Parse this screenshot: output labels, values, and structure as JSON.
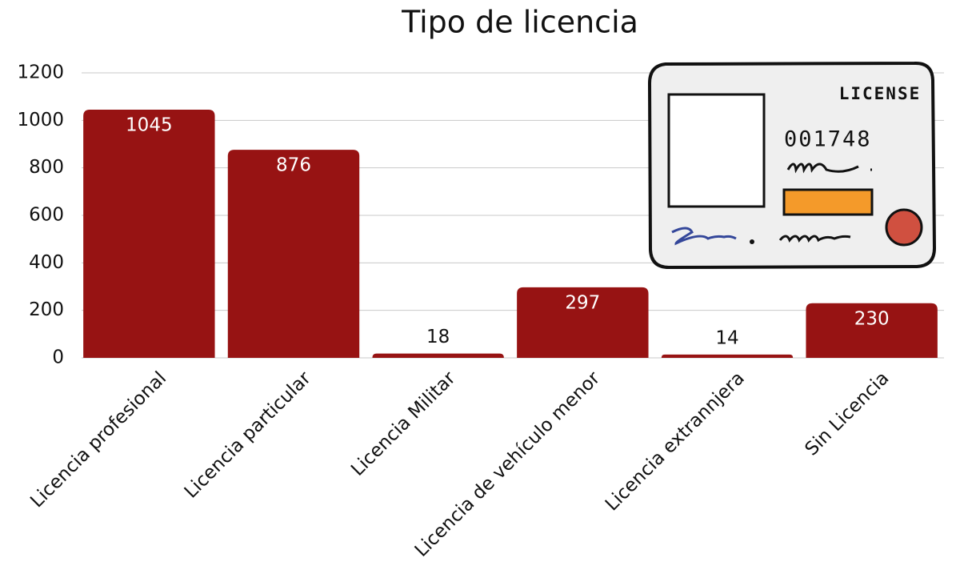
{
  "chart_data": {
    "type": "bar",
    "title": "Tipo de licencia",
    "categories": [
      "Licencia profesional",
      "Licencia particular",
      "Licencia Militar",
      "Licencia de vehículo menor",
      "Licencia extrannjera",
      "Sin Licencia"
    ],
    "values": [
      1045,
      876,
      18,
      297,
      14,
      230
    ],
    "color": "#971313",
    "ylim": [
      0,
      1200
    ],
    "yticks": [
      0,
      200,
      400,
      600,
      800,
      1000,
      1200
    ],
    "grid": true
  },
  "illustration": {
    "heading": "LICENSE",
    "number": "001748"
  }
}
